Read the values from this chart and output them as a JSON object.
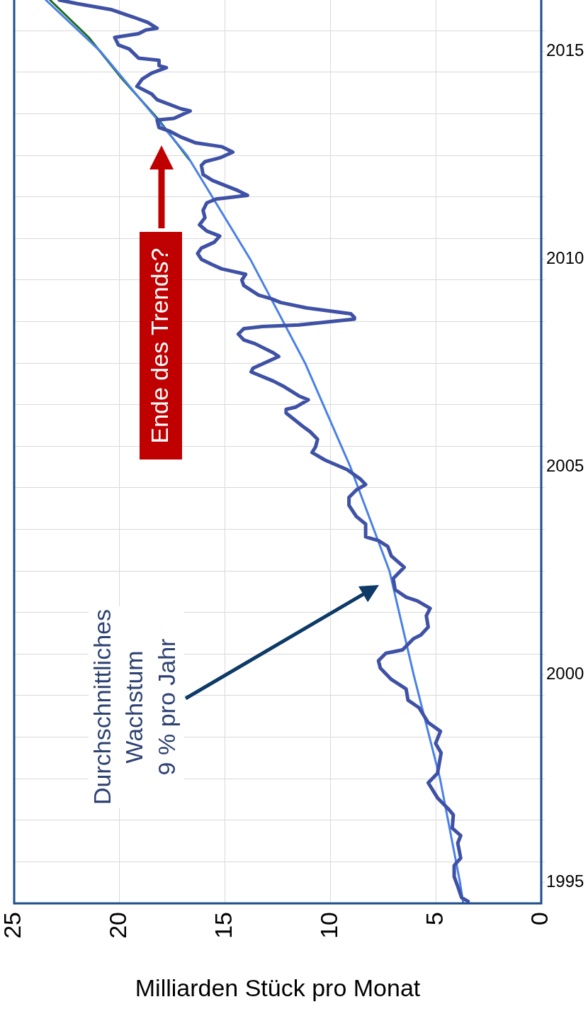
{
  "chart_data": {
    "type": "line",
    "xlabel": "Milliarden Stück pro Monat",
    "annotations": [
      "Durchschnittliches\nWachstum\n9 % pro Jahr",
      "Ende des Trends?"
    ],
    "xlim": [
      25,
      0
    ],
    "xticks": [
      0,
      5,
      10,
      15,
      20,
      25
    ],
    "ylim": [
      1994.5,
      2016.24
    ],
    "yticks": [
      1995,
      2000,
      2005,
      2010,
      2015,
      {
        "value": 1995.5,
        "label": null
      },
      {
        "value": 1996.5,
        "label": null
      },
      {
        "value": 1997.5,
        "label": null
      },
      {
        "value": 1998.5,
        "label": null
      },
      {
        "value": 1999.5,
        "label": null
      },
      {
        "value": 2000.5,
        "label": null
      },
      {
        "value": 2001.5,
        "label": null
      },
      {
        "value": 2002.5,
        "label": null
      },
      {
        "value": 2003.5,
        "label": null
      },
      {
        "value": 2004.5,
        "label": null
      },
      {
        "value": 2005.5,
        "label": null
      },
      {
        "value": 2006.5,
        "label": null
      },
      {
        "value": 2007.5,
        "label": null
      },
      {
        "value": 2008.5,
        "label": null
      },
      {
        "value": 2009.5,
        "label": null
      },
      {
        "value": 2010.5,
        "label": null
      },
      {
        "value": 2011.5,
        "label": null
      },
      {
        "value": 2012.5,
        "label": null
      },
      {
        "value": 2013.5,
        "label": null
      },
      {
        "value": 2014.5,
        "label": null
      },
      {
        "value": 2015.5,
        "label": null
      }
    ],
    "grid": true,
    "series": [
      {
        "color": "#3f51a5",
        "values": [
          1994.55,
          1994.64,
          1994.91,
          1995.14,
          1995.41,
          1995.59,
          1995.95,
          1996.13,
          1996.31,
          1996.63,
          1996.77,
          1997.04,
          1997.4,
          1997.63,
          1998.12,
          1998.35,
          1998.64,
          1998.85,
          1999.21,
          1999.39,
          1999.66,
          1999.89,
          2000.16,
          2000.34,
          2000.52,
          2000.6,
          2000.87,
          2000.96,
          2001.15,
          2001.42,
          2001.6,
          2001.78,
          2001.87,
          2002.05,
          2002.32,
          2002.59,
          2002.86,
          2003.09,
          2003.23,
          2003.32,
          2003.63,
          2003.81,
          2004.08,
          2004.27,
          2004.45,
          2004.58,
          2004.72,
          2004.94,
          2005.17,
          2005.35,
          2005.49,
          2005.67,
          2005.85,
          2005.98,
          2006.3,
          2006.39,
          2006.44,
          2006.62,
          2006.71,
          2006.93,
          2007.07,
          2007.29,
          2007.38,
          2007.66,
          2007.75,
          2007.97,
          2008.06,
          2008.2,
          2008.33,
          2008.38,
          2008.42,
          2008.56,
          2008.6,
          2008.69,
          2008.83,
          2008.96,
          2009.05,
          2009.14,
          2009.37,
          2009.5,
          2009.64,
          2009.77,
          2009.87,
          2010.0,
          2010.14,
          2010.27,
          2010.41,
          2010.56,
          2010.68,
          2010.83,
          2011.0,
          2011.18,
          2011.36,
          2011.45,
          2011.54,
          2011.67,
          2011.81,
          2011.9,
          2012.04,
          2012.26,
          2012.35,
          2012.44,
          2012.58,
          2012.71,
          2012.8,
          2012.94,
          2013.08,
          2013.17,
          2013.35,
          2013.39,
          2013.57,
          2013.62,
          2013.84,
          2013.98,
          2014.16,
          2014.34,
          2014.48,
          2014.61,
          2014.66,
          2014.79,
          2014.84,
          2015.06,
          2015.16,
          2015.34,
          2015.43,
          2015.52,
          2015.56,
          2015.7,
          2015.83,
          2016.01,
          2016.15,
          2016.24
        ],
        "x": [
          3.47,
          3.78,
          3.96,
          4.13,
          4.13,
          3.82,
          3.96,
          3.82,
          4.22,
          4.17,
          4.4,
          4.92,
          5.36,
          4.92,
          4.75,
          5.01,
          4.78,
          5.36,
          5.8,
          6.32,
          6.41,
          7.11,
          7.63,
          7.72,
          7.37,
          6.58,
          6.06,
          5.71,
          5.36,
          5.45,
          5.27,
          5.88,
          6.41,
          6.93,
          7.02,
          6.5,
          7.11,
          7.28,
          7.72,
          8.33,
          8.33,
          8.77,
          9.12,
          9.12,
          8.77,
          8.33,
          8.6,
          9.21,
          10.26,
          10.87,
          10.7,
          10.61,
          10.96,
          11.31,
          12.1,
          12.1,
          11.66,
          11.05,
          11.49,
          12.18,
          12.71,
          13.76,
          13.67,
          12.45,
          12.71,
          13.58,
          14.11,
          14.37,
          14.11,
          13.23,
          11.49,
          8.86,
          8.86,
          9.03,
          11.13,
          12.36,
          12.8,
          13.41,
          14.11,
          14.2,
          14.02,
          15.16,
          15.6,
          16.12,
          16.3,
          16.12,
          15.51,
          15.25,
          15.86,
          16.21,
          15.95,
          16.04,
          15.86,
          15.42,
          13.93,
          14.46,
          15.16,
          15.6,
          16.04,
          16.12,
          15.95,
          15.25,
          14.63,
          15.16,
          16.38,
          17.08,
          17.61,
          18.13,
          18.22,
          17.43,
          16.65,
          17.08,
          18.22,
          18.48,
          19.18,
          18.92,
          18.48,
          17.78,
          18.13,
          18.13,
          19.1,
          19.54,
          20.06,
          20.23,
          19.1,
          18.75,
          18.22,
          18.66,
          19.36,
          20.41,
          21.99,
          22.86
        ]
      },
      {
        "color": "#4a80e8",
        "values": [
          1994.5,
          1995.0,
          1997.5,
          2000.0,
          2002.5,
          2005.0,
          2007.5,
          2010.0,
          2012.5,
          2015.0,
          2016.24
        ],
        "x": [
          3.7,
          3.85,
          4.8,
          6.05,
          7.2,
          9.05,
          11.2,
          13.8,
          16.8,
          20.9,
          23.5
        ]
      },
      {
        "color": "#1e6b1e",
        "values": [
          2012.4,
          2013.35,
          2014.34,
          2015.34,
          2016.24
        ],
        "x": [
          16.7,
          18.13,
          19.88,
          21.46,
          23.3
        ]
      }
    ]
  }
}
